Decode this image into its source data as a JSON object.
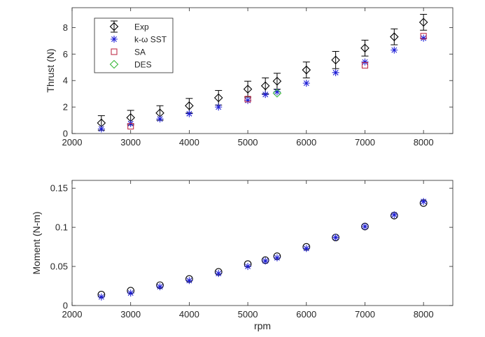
{
  "chart_data": [
    {
      "type": "scatter",
      "title": "",
      "xlabel": "",
      "ylabel": "Thrust (N)",
      "xlim": [
        2000,
        8500
      ],
      "ylim": [
        0,
        9.5
      ],
      "x_ticks": [
        "2000",
        "3000",
        "4000",
        "5000",
        "6000",
        "7000",
        "8000"
      ],
      "y_ticks": [
        "0",
        "2",
        "4",
        "6",
        "8"
      ],
      "x_tick_values": [
        2000,
        3000,
        4000,
        5000,
        6000,
        7000,
        8000
      ],
      "y_tick_values": [
        0,
        2,
        4,
        6,
        8
      ],
      "legend_position": "top-left",
      "grid": false,
      "series": [
        {
          "name": "Exp",
          "marker": "diamond",
          "color": "#000000",
          "error_bars": true,
          "points": [
            {
              "x": 2500,
              "y": 0.8,
              "err": 0.55
            },
            {
              "x": 3000,
              "y": 1.2,
              "err": 0.55
            },
            {
              "x": 3500,
              "y": 1.55,
              "err": 0.55
            },
            {
              "x": 4000,
              "y": 2.1,
              "err": 0.55
            },
            {
              "x": 4500,
              "y": 2.7,
              "err": 0.55
            },
            {
              "x": 5000,
              "y": 3.35,
              "err": 0.6
            },
            {
              "x": 5300,
              "y": 3.6,
              "err": 0.6
            },
            {
              "x": 5500,
              "y": 3.95,
              "err": 0.6
            },
            {
              "x": 6000,
              "y": 4.8,
              "err": 0.6
            },
            {
              "x": 6500,
              "y": 5.55,
              "err": 0.65
            },
            {
              "x": 7000,
              "y": 6.45,
              "err": 0.6
            },
            {
              "x": 7500,
              "y": 7.3,
              "err": 0.6
            },
            {
              "x": 8000,
              "y": 8.4,
              "err": 0.6
            }
          ]
        },
        {
          "name": "k-ω SST",
          "marker": "asterisk",
          "color": "#1f1fd6",
          "points": [
            {
              "x": 2500,
              "y": 0.35
            },
            {
              "x": 3000,
              "y": 0.75
            },
            {
              "x": 3500,
              "y": 1.1
            },
            {
              "x": 4000,
              "y": 1.5
            },
            {
              "x": 4500,
              "y": 2.0
            },
            {
              "x": 5000,
              "y": 2.5
            },
            {
              "x": 5300,
              "y": 2.95
            },
            {
              "x": 5500,
              "y": 3.15
            },
            {
              "x": 6000,
              "y": 3.8
            },
            {
              "x": 6500,
              "y": 4.6
            },
            {
              "x": 7000,
              "y": 5.4
            },
            {
              "x": 7500,
              "y": 6.3
            },
            {
              "x": 8000,
              "y": 7.2
            }
          ]
        },
        {
          "name": "SA",
          "marker": "square",
          "color": "#c0304a",
          "points": [
            {
              "x": 3000,
              "y": 0.55
            },
            {
              "x": 5000,
              "y": 2.6
            },
            {
              "x": 7000,
              "y": 5.15
            },
            {
              "x": 8000,
              "y": 7.35
            }
          ]
        },
        {
          "name": "DES",
          "marker": "diamond",
          "color": "#3cb83c",
          "points": [
            {
              "x": 5500,
              "y": 3.05
            }
          ]
        }
      ]
    },
    {
      "type": "scatter",
      "title": "",
      "xlabel": "rpm",
      "ylabel": "Moment (N-m)",
      "xlim": [
        2000,
        8500
      ],
      "ylim": [
        0,
        0.16
      ],
      "x_ticks": [
        "2000",
        "3000",
        "4000",
        "5000",
        "6000",
        "7000",
        "8000"
      ],
      "y_ticks": [
        "0",
        "0.05",
        "0.1",
        "0.15"
      ],
      "x_tick_values": [
        2000,
        3000,
        4000,
        5000,
        6000,
        7000,
        8000
      ],
      "y_tick_values": [
        0,
        0.05,
        0.1,
        0.15
      ],
      "grid": false,
      "series": [
        {
          "marker": "circle",
          "color": "#000000",
          "points": [
            {
              "x": 2500,
              "y": 0.014
            },
            {
              "x": 3000,
              "y": 0.019
            },
            {
              "x": 3500,
              "y": 0.026
            },
            {
              "x": 4000,
              "y": 0.034
            },
            {
              "x": 4500,
              "y": 0.043
            },
            {
              "x": 5000,
              "y": 0.053
            },
            {
              "x": 5300,
              "y": 0.058
            },
            {
              "x": 5500,
              "y": 0.063
            },
            {
              "x": 6000,
              "y": 0.075
            },
            {
              "x": 6500,
              "y": 0.087
            },
            {
              "x": 7000,
              "y": 0.101
            },
            {
              "x": 7500,
              "y": 0.115
            },
            {
              "x": 8000,
              "y": 0.131
            }
          ]
        },
        {
          "marker": "asterisk",
          "color": "#1f1fd6",
          "points": [
            {
              "x": 2500,
              "y": 0.011
            },
            {
              "x": 3000,
              "y": 0.016
            },
            {
              "x": 3500,
              "y": 0.024
            },
            {
              "x": 4000,
              "y": 0.032
            },
            {
              "x": 4500,
              "y": 0.041
            },
            {
              "x": 5000,
              "y": 0.05
            },
            {
              "x": 5300,
              "y": 0.057
            },
            {
              "x": 5500,
              "y": 0.061
            },
            {
              "x": 6000,
              "y": 0.073
            },
            {
              "x": 6500,
              "y": 0.087
            },
            {
              "x": 7000,
              "y": 0.101
            },
            {
              "x": 7500,
              "y": 0.116
            },
            {
              "x": 8000,
              "y": 0.133
            }
          ]
        }
      ]
    }
  ]
}
